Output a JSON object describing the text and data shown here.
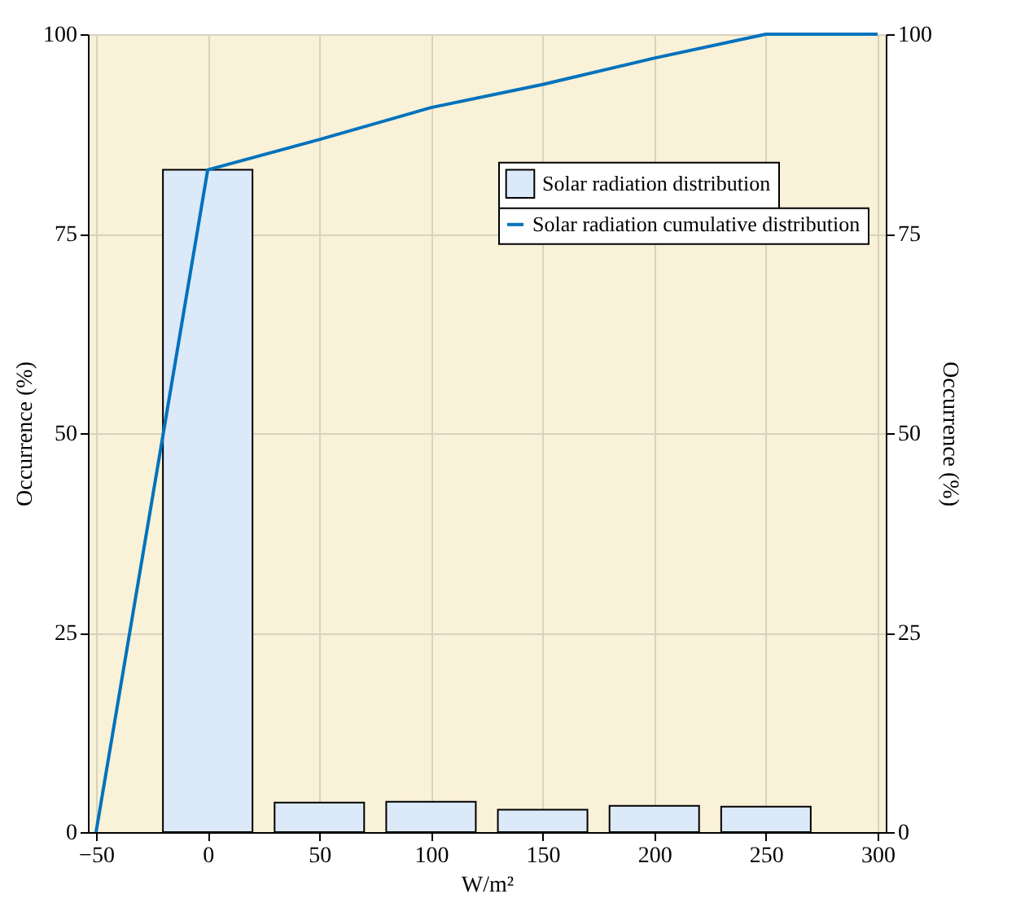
{
  "chart_data": {
    "type": "bar",
    "xlabel": "W/m²",
    "ylabel": "Occurrence (%)",
    "y2label": "Occurrence (%)",
    "x": [
      0,
      50,
      100,
      150,
      200,
      250
    ],
    "series": [
      {
        "name": "Solar radiation distribution",
        "color": "#dce9f8",
        "values": [
          83,
          3.7,
          3.8,
          2.8,
          3.3,
          3.2
        ]
      },
      {
        "type": "line",
        "name": "Solar radiation cumulative distribution",
        "color": "#0072bd",
        "axis": "y2",
        "x": [
          -50,
          0,
          50,
          100,
          150,
          200,
          250,
          300
        ],
        "values": [
          0,
          83,
          86.8,
          90.8,
          93.7,
          97,
          100,
          100
        ]
      }
    ],
    "xlim": [
      -50,
      300
    ],
    "xticks": [
      -50,
      0,
      50,
      100,
      150,
      200,
      250,
      300
    ],
    "ylim": [
      0,
      100
    ],
    "yticks": [
      0,
      25,
      50,
      75,
      100
    ],
    "y2lim": [
      0,
      100
    ],
    "y2ticks": [
      0,
      25,
      50,
      75,
      100
    ],
    "grid": true,
    "legend": "top right"
  }
}
